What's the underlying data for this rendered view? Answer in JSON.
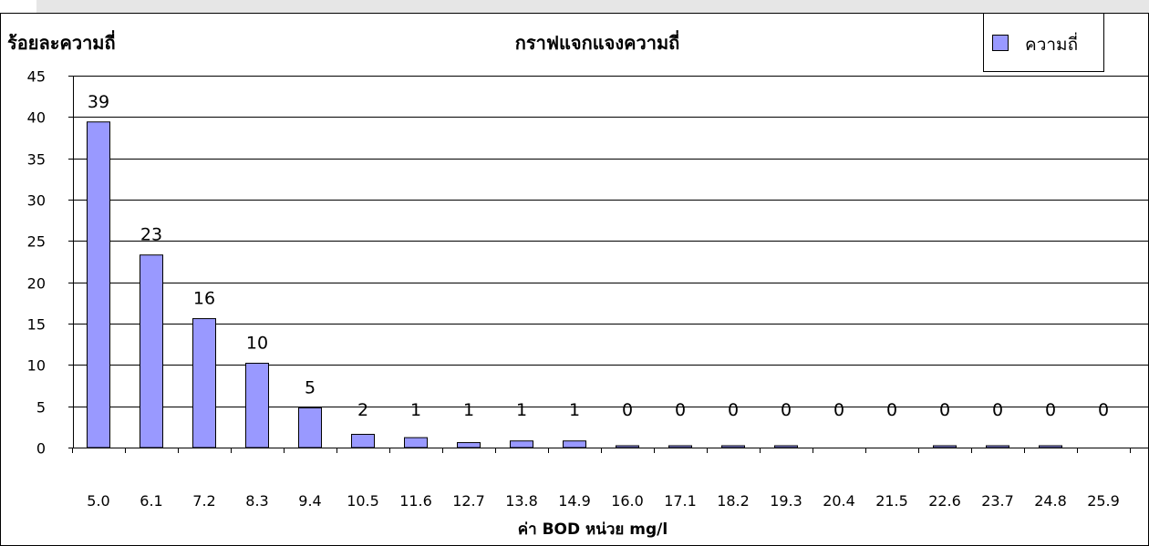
{
  "chart_data": {
    "type": "bar",
    "title": "กราฟแจกแจงความถี่",
    "ylabel": "ร้อยละความถี่",
    "xlabel": "ค่า BOD หน่วย mg/l",
    "categories": [
      "5.0",
      "6.1",
      "7.2",
      "8.3",
      "9.4",
      "10.5",
      "11.6",
      "12.7",
      "13.8",
      "14.9",
      "16.0",
      "17.1",
      "18.2",
      "19.3",
      "20.4",
      "21.5",
      "22.6",
      "23.7",
      "24.8",
      "25.9"
    ],
    "series": [
      {
        "name": "ความถี่",
        "values": [
          39.4,
          23.3,
          15.6,
          10.2,
          4.8,
          1.6,
          1.2,
          0.6,
          0.8,
          0.8,
          0.2,
          0.2,
          0.2,
          0.2,
          0,
          0,
          0.2,
          0.2,
          0.2,
          0
        ],
        "labels": [
          "39",
          "23",
          "16",
          "10",
          "5",
          "2",
          "1",
          "1",
          "1",
          "1",
          "0",
          "0",
          "0",
          "0",
          "0",
          "0",
          "0",
          "0",
          "0",
          "0"
        ]
      }
    ],
    "ylim": [
      0,
      45
    ],
    "yticks": [
      0,
      5,
      10,
      15,
      20,
      25,
      30,
      35,
      40,
      45
    ],
    "grid": true,
    "legend_position": "top-right",
    "colors": {
      "bar": "#9999ff",
      "bar_stroke": "#000000",
      "grid": "#000000"
    }
  }
}
